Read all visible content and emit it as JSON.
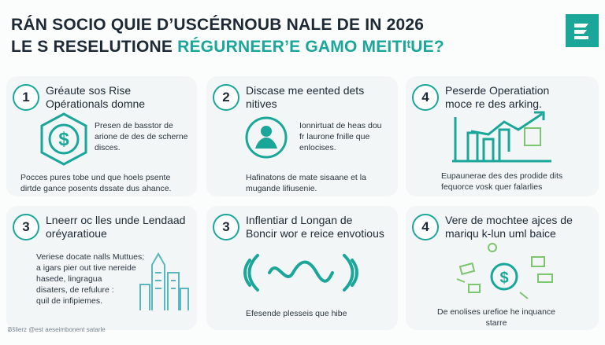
{
  "header": {
    "title_line1": "RÁN SOCIO QUIE D’USCÉRNOUB NALE DE IN 2026",
    "title_line2_dark": "LE S RESELUTIONE",
    "title_line2_accent": "RÉGURNEER’E GAMO MEITIᵗUE?"
  },
  "cards": [
    {
      "number": "1",
      "title": [
        "Gréaute sos Rise",
        "Opérationals domne"
      ],
      "text_a": [
        "Presen de basstor de",
        "arione de des de scherne",
        "disces."
      ],
      "text_b": [
        "Pocces pures tobe und que hoels psente",
        "dirtde gance posents dssate dus ahance."
      ]
    },
    {
      "number": "2",
      "title": [
        "Discase me eented dets",
        "nitives"
      ],
      "text_a": [
        "Ionnirtuat de heas dou",
        "fr laurone fnille que",
        "enlocises."
      ],
      "text_b": [
        "Hafinatons de mate sisaane et la",
        "mugande lifiusenie."
      ]
    },
    {
      "number": "4",
      "title": [
        "Peserde Operatiation",
        "moce re des arking."
      ],
      "text_b": [
        "Eupaunerae des des prodide dits",
        "fequorce vosk quer falarlies"
      ]
    },
    {
      "number": "3",
      "title": [
        "Lneerr oc lles unde Lendaad",
        "oréyaratioue"
      ],
      "text_a": [
        "Veriese docate nalls Muttues;",
        "a igars pier out tive nereide",
        "hasede, lingragua",
        "disaters, de refulure :",
        "quil de infipiemes."
      ]
    },
    {
      "number": "3",
      "title": [
        "Inflentiar d Longan de",
        "Boncir wor e reice envotious"
      ],
      "text_b": [
        "Efesende plesseis que hibe"
      ]
    },
    {
      "number": "4",
      "title": [
        "Vere de mochtee ajces de",
        "mariqu k-lun uml baice"
      ],
      "text_b": [
        "De enolises urefioe he inquance",
        "starre"
      ]
    }
  ],
  "footer": "Ƀšlierz @est aeseimbonent satarle"
}
